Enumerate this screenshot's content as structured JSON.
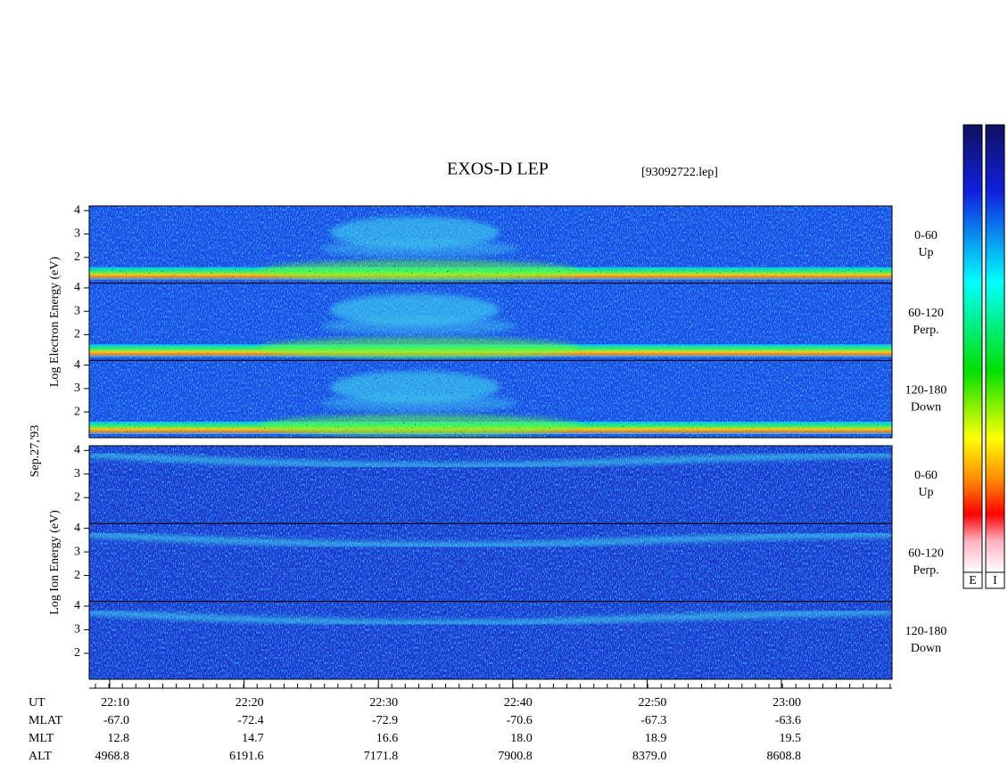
{
  "title": "EXOS-D LEP",
  "file": "[93092722.lep]",
  "date": "Sep.27,'93",
  "groups": [
    {
      "label": "Log Electron Energy (eV)",
      "panels": [
        {
          "range": "0-60",
          "direction": "Up",
          "ylim": [
            0.9,
            4.2
          ],
          "yticks": [
            2,
            3,
            4
          ]
        },
        {
          "range": "60-120",
          "direction": "Perp.",
          "ylim": [
            0.9,
            4.2
          ],
          "yticks": [
            2,
            3,
            4
          ]
        },
        {
          "range": "120-180",
          "direction": "Down",
          "ylim": [
            0.9,
            4.2
          ],
          "yticks": [
            2,
            3,
            4
          ]
        }
      ]
    },
    {
      "label": "Log Ion Energy (eV)",
      "panels": [
        {
          "range": "0-60",
          "direction": "Up",
          "ylim": [
            0.9,
            4.2
          ],
          "yticks": [
            2,
            3,
            4
          ]
        },
        {
          "range": "60-120",
          "direction": "Perp.",
          "ylim": [
            0.9,
            4.2
          ],
          "yticks": [
            2,
            3,
            4
          ]
        },
        {
          "range": "120-180",
          "direction": "Down",
          "ylim": [
            0.9,
            4.2
          ],
          "yticks": [
            2,
            3,
            4
          ]
        }
      ]
    }
  ],
  "rows": [
    {
      "name": "UT",
      "values": [
        "22:10",
        "22:20",
        "22:30",
        "22:40",
        "22:50",
        "23:00"
      ]
    },
    {
      "name": "MLAT",
      "values": [
        "-67.0",
        "-72.4",
        "-72.9",
        "-70.6",
        "-67.3",
        "-63.6"
      ]
    },
    {
      "name": "MLT",
      "values": [
        "12.8",
        "14.7",
        "16.6",
        "18.0",
        "18.9",
        "19.5"
      ]
    },
    {
      "name": "ALT",
      "values": [
        "4968.8",
        "6191.6",
        "7171.8",
        "7900.8",
        "8379.0",
        "8608.8"
      ]
    }
  ],
  "colorbars": [
    "E",
    "I"
  ]
}
